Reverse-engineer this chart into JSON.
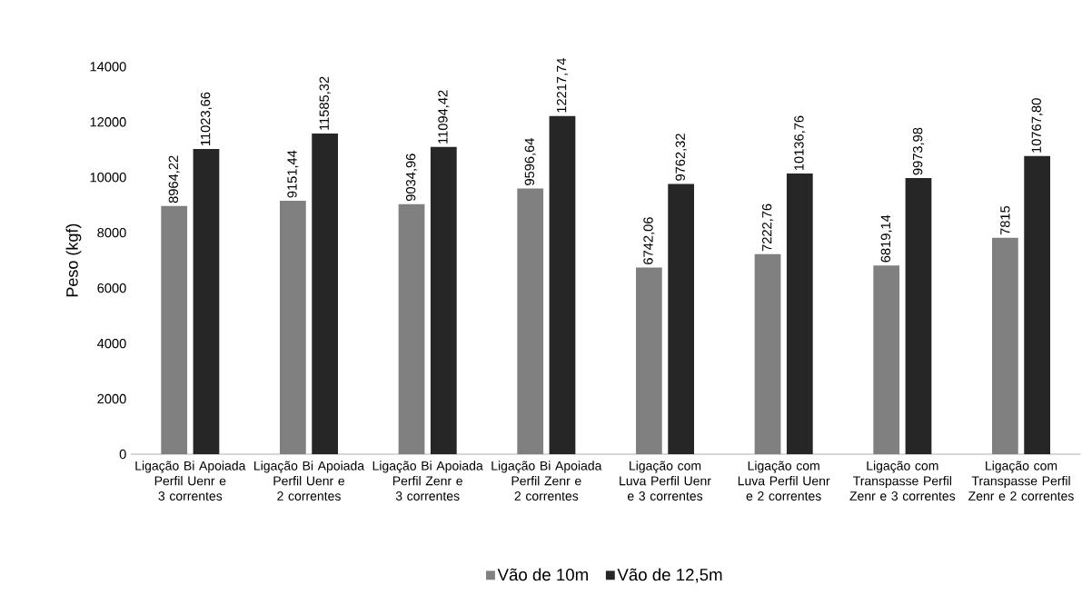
{
  "chart_data": {
    "type": "bar",
    "ylabel": "Peso (kgf)",
    "categories": [
      "Ligação Bi Apoiada Perfil Uenr e 3 correntes",
      "Ligação Bi Apoiada Perfil Uenr e 2 correntes",
      "Ligação Bi Apoiada Perfil Zenr e 3 correntes",
      "Ligação Bi Apoiada Perfil Zenr e 2 correntes",
      "Ligação com Luva Perfil Uenr e 3 correntes",
      "Ligação com Luva Perfil Uenr e 2 correntes",
      "Ligação com Transpasse Perfil Zenr e 3 correntes",
      "Ligação com Transpasse Perfil Zenr e 2 correntes"
    ],
    "series": [
      {
        "name": "Vão de 10m",
        "color": "#808080",
        "values": [
          8964.22,
          9151.44,
          9034.96,
          9596.64,
          6742.06,
          7222.76,
          6819.14,
          7815
        ],
        "value_labels": [
          "8964,22",
          "9151,44",
          "9034,96",
          "9596,64",
          "6742,06",
          "7222,76",
          "6819,14",
          "7815"
        ]
      },
      {
        "name": "Vão de 12,5m",
        "color": "#262626",
        "values": [
          11023.66,
          11585.32,
          11094.42,
          12217.74,
          9762.32,
          10136.76,
          9973.98,
          10767.8
        ],
        "value_labels": [
          "11023,66",
          "11585,32",
          "11094,42",
          "12217,74",
          "9762,32",
          "10136,76",
          "9973,98",
          "10767,80"
        ]
      }
    ],
    "ylim": [
      0,
      14000
    ],
    "yticks": [
      0,
      2000,
      4000,
      6000,
      8000,
      10000,
      12000,
      14000
    ],
    "legend": "bottom"
  }
}
